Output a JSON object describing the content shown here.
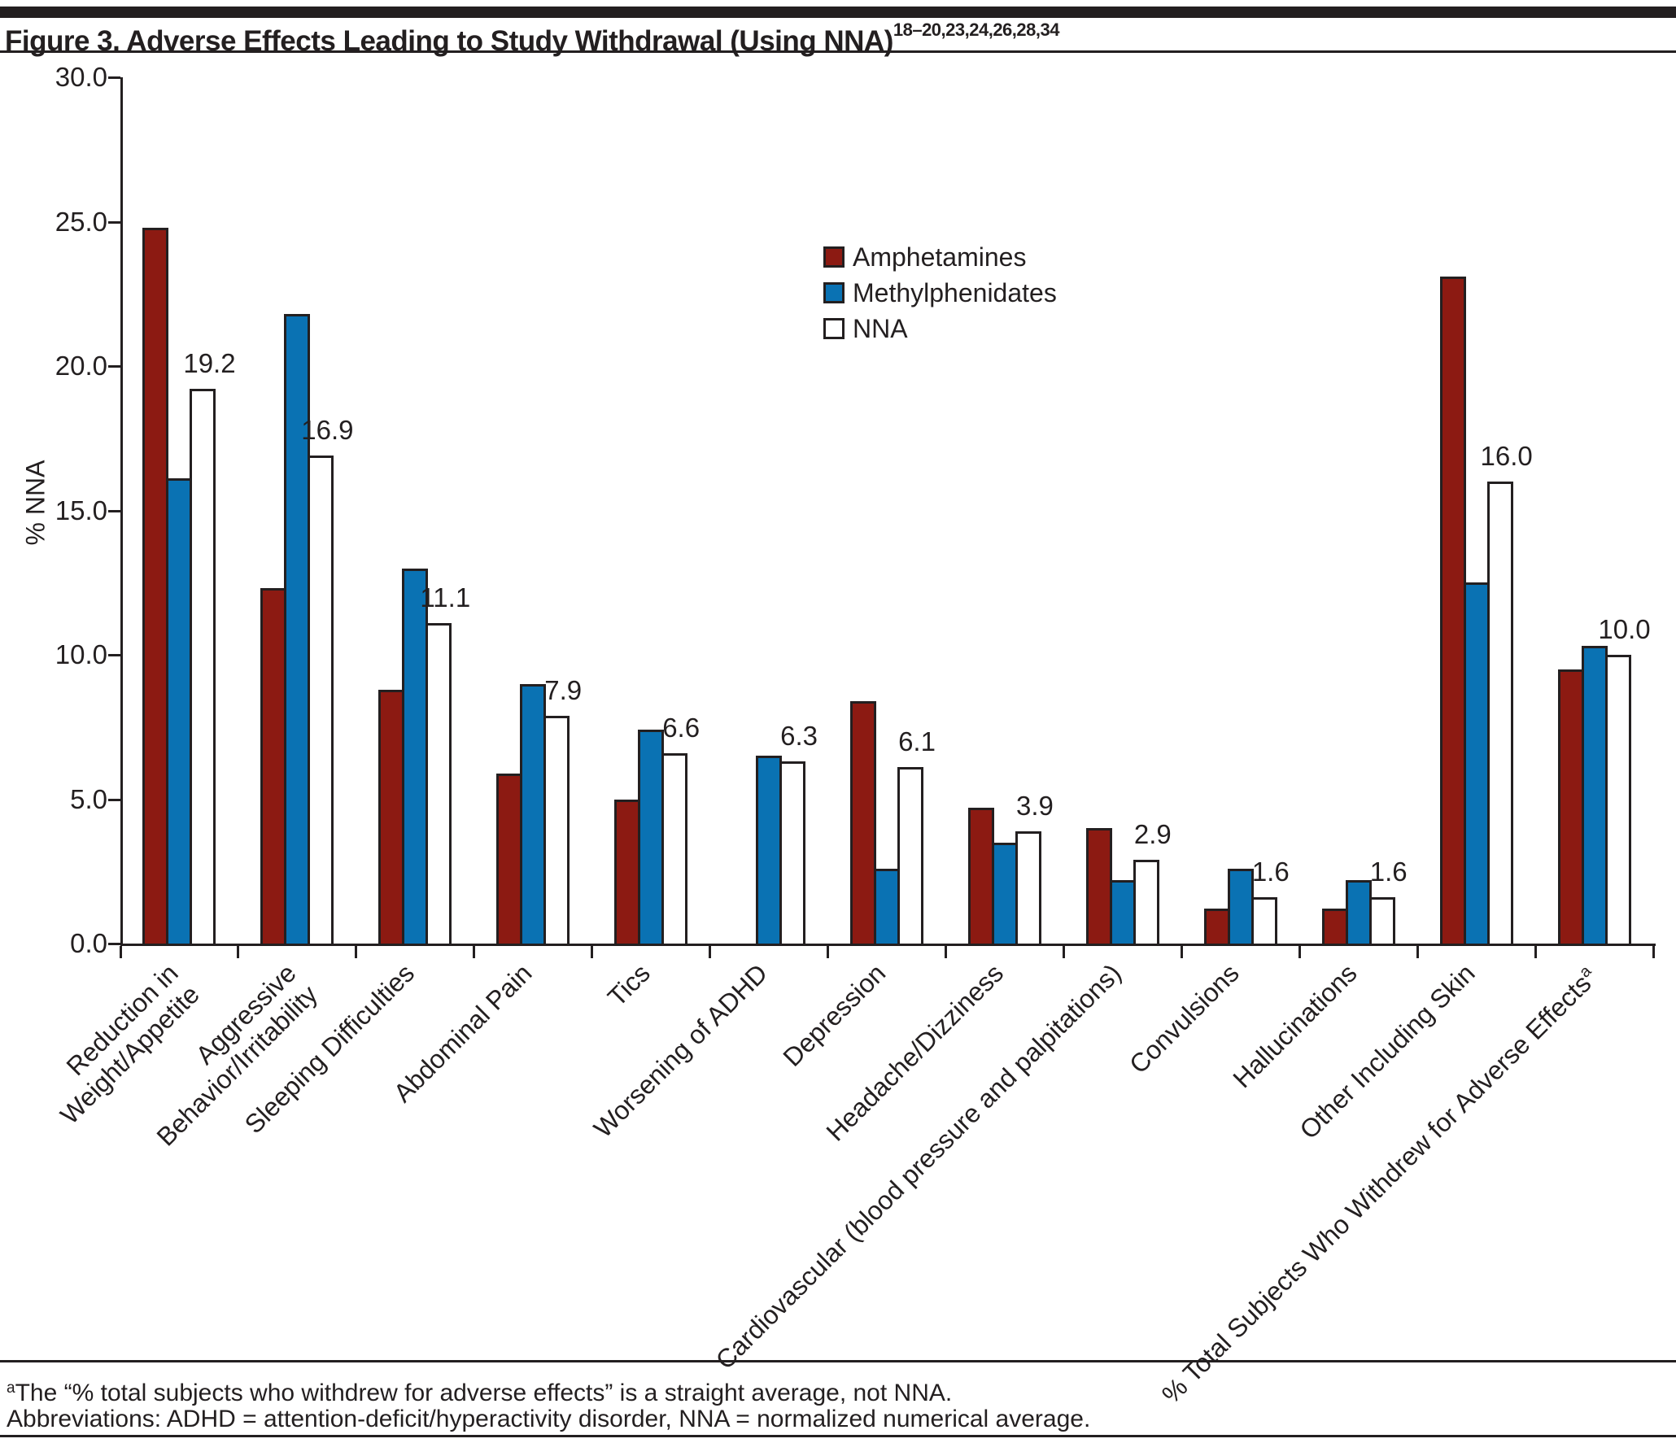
{
  "page": {
    "title": "Figure 3. Adverse Effects Leading to Study Withdrawal (Using NNA)",
    "title_citations": "18–20,23,24,26,28,34",
    "footnote_superscript": "a",
    "footnote_text": "The “% total subjects who withdrew for adverse effects” is a straight average, not NNA.",
    "abbreviations_text": "Abbreviations: ADHD = attention-deficit/hyperactivity disorder, NNA = normalized numerical average."
  },
  "chart_data": {
    "type": "bar",
    "title": "",
    "ylabel": "% NNA",
    "xlabel": "",
    "ylim": [
      0,
      30
    ],
    "yticks": [
      0,
      5,
      10,
      15,
      20,
      25,
      30
    ],
    "ytick_labels": [
      "0.0",
      "5.0",
      "10.0",
      "15.0",
      "20.0",
      "25.0",
      "30.0"
    ],
    "grid": false,
    "legend_position": "upper center",
    "colors": {
      "stroke": "#231f20",
      "background": "#ffffff"
    },
    "categories": [
      {
        "label": "Reduction in\nWeight/Appetite"
      },
      {
        "label": "Aggressive Behavior/Irritability"
      },
      {
        "label": "Sleeping Difficulties"
      },
      {
        "label": "Abdominal Pain"
      },
      {
        "label": "Tics"
      },
      {
        "label": "Worsening of ADHD"
      },
      {
        "label": "Depression"
      },
      {
        "label": "Headache/Dizziness"
      },
      {
        "label": "Cardiovascular (blood pressure and palpitations)"
      },
      {
        "label": "Convulsions"
      },
      {
        "label": "Hallucinations"
      },
      {
        "label": "Other Including Skin"
      },
      {
        "label": "% Total Subjects Who Withdrew for Adverse Effects",
        "sup": "a"
      }
    ],
    "series": [
      {
        "name": "Amphetamines",
        "color": "#8c1a12",
        "values": [
          24.8,
          12.3,
          8.8,
          5.9,
          5.0,
          null,
          8.4,
          4.7,
          4.0,
          1.2,
          1.2,
          23.1,
          9.5
        ]
      },
      {
        "name": "Methylphenidates",
        "color": "#0a72b3",
        "values": [
          16.1,
          21.8,
          13.0,
          9.0,
          7.4,
          6.5,
          2.6,
          3.5,
          2.2,
          2.6,
          2.2,
          12.5,
          10.3
        ]
      },
      {
        "name": "NNA",
        "color": "#ffffff",
        "values": [
          19.2,
          16.9,
          11.1,
          7.9,
          6.6,
          6.3,
          6.1,
          3.9,
          2.9,
          1.6,
          1.6,
          16.0,
          10.0
        ],
        "show_value_labels": true,
        "value_labels": [
          "19.2",
          "16.9",
          "11.1",
          "7.9",
          "6.6",
          "6.3",
          "6.1",
          "3.9",
          "2.9",
          "1.6",
          "1.6",
          "16.0",
          "10.0"
        ]
      }
    ]
  }
}
